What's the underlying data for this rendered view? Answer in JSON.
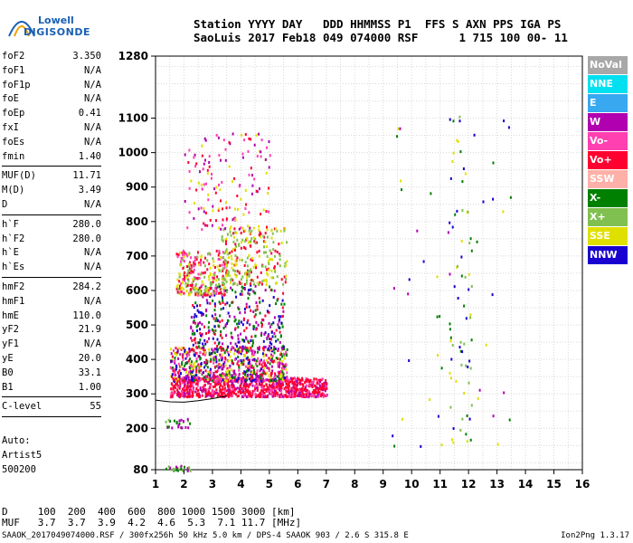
{
  "logo": {
    "lowell": "Lowell",
    "digisonde": "DIGISONDE"
  },
  "header": {
    "line1": "Station YYYY DAY   DDD HHMMSS P1  FFS S AXN PPS IGA PS",
    "line2": "SaoLuis 2017 Feb18 049 074000 RSF      1 715 100 00- 11"
  },
  "params_group1": [
    {
      "name": "foF2",
      "value": "3.350"
    },
    {
      "name": "foF1",
      "value": "N/A"
    },
    {
      "name": "foF1p",
      "value": "N/A"
    },
    {
      "name": "foE",
      "value": "N/A"
    },
    {
      "name": "foEp",
      "value": "0.41"
    },
    {
      "name": "fxI",
      "value": "N/A"
    },
    {
      "name": "foEs",
      "value": "N/A"
    },
    {
      "name": "fmin",
      "value": "1.40"
    }
  ],
  "params_group2": [
    {
      "name": "MUF(D)",
      "value": "11.71"
    },
    {
      "name": "M(D)",
      "value": "3.49"
    },
    {
      "name": "D",
      "value": "N/A"
    }
  ],
  "params_group3": [
    {
      "name": "h`F",
      "value": "280.0"
    },
    {
      "name": "h`F2",
      "value": "280.0"
    },
    {
      "name": "h`E",
      "value": "N/A"
    },
    {
      "name": "h`Es",
      "value": "N/A"
    }
  ],
  "params_group4": [
    {
      "name": "hmF2",
      "value": "284.2"
    },
    {
      "name": "hmF1",
      "value": "N/A"
    },
    {
      "name": "hmE",
      "value": "110.0"
    },
    {
      "name": "yF2",
      "value": "21.9"
    },
    {
      "name": "yF1",
      "value": "N/A"
    },
    {
      "name": "yE",
      "value": "20.0"
    },
    {
      "name": "B0",
      "value": "33.1"
    },
    {
      "name": "B1",
      "value": "1.00"
    }
  ],
  "params_group5": [
    {
      "name": "C-level",
      "value": "55"
    }
  ],
  "auto": {
    "line1": "Auto:",
    "line2": "Artist5",
    "line3": "500200"
  },
  "legend": [
    {
      "label": "NoVal",
      "color": "#a8a8a8"
    },
    {
      "label": "NNE",
      "color": "#00e0f0"
    },
    {
      "label": "E",
      "color": "#38a8f0"
    },
    {
      "label": "W",
      "color": "#b000b0"
    },
    {
      "label": "Vo-",
      "color": "#ff40b0"
    },
    {
      "label": "Vo+",
      "color": "#ff0030"
    },
    {
      "label": "SSW",
      "color": "#ffb0a8"
    },
    {
      "label": "X-",
      "color": "#008000"
    },
    {
      "label": "X+",
      "color": "#80c050"
    },
    {
      "label": "SSE",
      "color": "#e0e000"
    },
    {
      "label": "NNW",
      "color": "#1800d0"
    }
  ],
  "footer": {
    "line1": "D     100  200  400  600  800 1000 1500 3000 [km]",
    "line2": "MUF   3.7  3.7  3.9  4.2  4.6  5.3  7.1 11.7 [MHz]",
    "source": "SAAOK_2017049074000.RSF / 300fx256h 50 kHz 5.0 km / DPS-4 SAAOK 903 / 2.6 S 315.8 E",
    "version": "Ion2Png 1.3.17"
  },
  "chart_data": {
    "type": "scatter",
    "title": "",
    "xlabel": "",
    "ylabel": "",
    "x_ticks": [
      1,
      2,
      3,
      4,
      5,
      6,
      7,
      8,
      9,
      10,
      11,
      12,
      13,
      14,
      15,
      16
    ],
    "y_ticks": [
      80,
      200,
      300,
      400,
      500,
      600,
      700,
      800,
      900,
      1000,
      1100,
      1280
    ],
    "xlim": [
      1,
      16
    ],
    "ylim": [
      80,
      1280
    ],
    "grid": true,
    "trace": {
      "name": "",
      "points": [
        [
          1.0,
          282
        ],
        [
          1.5,
          277
        ],
        [
          2.0,
          276
        ],
        [
          2.5,
          280
        ],
        [
          3.0,
          286
        ],
        [
          3.5,
          294
        ]
      ]
    },
    "clusters": [
      {
        "x": [
          1.5,
          7.0
        ],
        "y": [
          295,
          350
        ],
        "n": 900,
        "colors": [
          "#ff0030",
          "#ff0030",
          "#ff40b0",
          "#b000b0",
          "#ff0030"
        ]
      },
      {
        "x": [
          1.5,
          5.6
        ],
        "y": [
          340,
          440
        ],
        "n": 700,
        "colors": [
          "#ff0030",
          "#b000b0",
          "#1800d0",
          "#e0e000",
          "#008000",
          "#ff40b0"
        ]
      },
      {
        "x": [
          2.2,
          5.5
        ],
        "y": [
          430,
          620
        ],
        "n": 350,
        "colors": [
          "#1800d0",
          "#b000b0",
          "#ff0030",
          "#008000"
        ]
      },
      {
        "x": [
          1.7,
          3.5
        ],
        "y": [
          590,
          720
        ],
        "n": 280,
        "colors": [
          "#ff0030",
          "#e0e000",
          "#ff40b0",
          "#80c050"
        ]
      },
      {
        "x": [
          3.3,
          5.6
        ],
        "y": [
          620,
          790
        ],
        "n": 240,
        "colors": [
          "#e0e000",
          "#80c050",
          "#ff0030"
        ]
      },
      {
        "x": [
          2.0,
          5.0
        ],
        "y": [
          780,
          1060
        ],
        "n": 150,
        "colors": [
          "#ff0030",
          "#e0e000",
          "#b000b0",
          "#ff40b0"
        ]
      },
      {
        "x": [
          1.3,
          2.2
        ],
        "y": [
          205,
          230
        ],
        "n": 25,
        "colors": [
          "#008000",
          "#b000b0",
          "#80c050"
        ]
      },
      {
        "x": [
          1.3,
          2.2
        ],
        "y": [
          80,
          95
        ],
        "n": 25,
        "colors": [
          "#008000",
          "#b000b0",
          "#80c050"
        ]
      },
      {
        "x": [
          11.3,
          12.1
        ],
        "y": [
          160,
          1120
        ],
        "n": 70,
        "colors": [
          "#008000",
          "#1800d0",
          "#80c050",
          "#e0e000"
        ]
      },
      {
        "x": [
          9.3,
          13.5
        ],
        "y": [
          150,
          1100
        ],
        "n": 45,
        "colors": [
          "#e0e000",
          "#008000",
          "#1800d0",
          "#b000b0"
        ]
      }
    ]
  }
}
